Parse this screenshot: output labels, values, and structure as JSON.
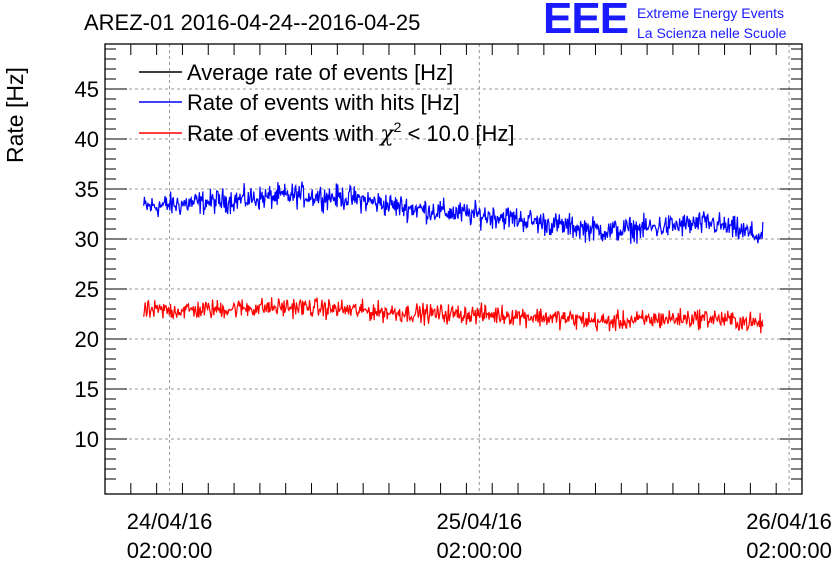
{
  "header": {
    "title": "AREZ-01 2016-04-24--2016-04-25",
    "logo_letters": "EEE",
    "logo_line1": "Extreme Energy Events",
    "logo_line2": "La Scienza nelle Scuole"
  },
  "colors": {
    "average": "#000000",
    "hits": "#0000ff",
    "chi2": "#ff0000",
    "logo": "#1a1aff",
    "grid": "#9a9a9a"
  },
  "chart_data": {
    "type": "line",
    "ylabel": "Rate [Hz]",
    "xlabel": "",
    "ylim": [
      4.5,
      49.5
    ],
    "yticks": [
      10,
      15,
      20,
      25,
      30,
      35,
      40,
      45
    ],
    "xlim": [
      "2016-04-23 21:00:00",
      "2016-04-26 03:00:00"
    ],
    "xticks": [
      {
        "date": "24/04/16",
        "time": "02:00:00",
        "value": "2016-04-24 02:00:00"
      },
      {
        "date": "25/04/16",
        "time": "02:00:00",
        "value": "2016-04-25 02:00:00"
      },
      {
        "date": "26/04/16",
        "time": "02:00:00",
        "value": "2016-04-26 02:00:00"
      }
    ],
    "grid": true,
    "legend_position": "top-left",
    "legend": {
      "average": "Average rate of events [Hz]",
      "hits": "Rate of events with hits [Hz]",
      "chi2_prefix": "Rate of events with ",
      "chi2_symbol": "χ",
      "chi2_sup": "2",
      "chi2_suffix": " < 10.0 [Hz]"
    },
    "series": [
      {
        "name": "Rate of events with hits [Hz]",
        "key": "hits",
        "noise": 1.0,
        "points": [
          {
            "x": "2016-04-24 00:00:00",
            "y": 33.2
          },
          {
            "x": "2016-04-24 04:00:00",
            "y": 33.6
          },
          {
            "x": "2016-04-24 08:00:00",
            "y": 34.0
          },
          {
            "x": "2016-04-24 12:00:00",
            "y": 34.4
          },
          {
            "x": "2016-04-24 16:00:00",
            "y": 34.1
          },
          {
            "x": "2016-04-24 20:00:00",
            "y": 33.2
          },
          {
            "x": "2016-04-25 00:00:00",
            "y": 32.6
          },
          {
            "x": "2016-04-25 04:00:00",
            "y": 32.2
          },
          {
            "x": "2016-04-25 08:00:00",
            "y": 31.4
          },
          {
            "x": "2016-04-25 12:00:00",
            "y": 30.8
          },
          {
            "x": "2016-04-25 16:00:00",
            "y": 31.2
          },
          {
            "x": "2016-04-25 20:00:00",
            "y": 31.6
          },
          {
            "x": "2016-04-25 23:58:00",
            "y": 30.2
          }
        ]
      },
      {
        "name": "Rate of events with χ2 < 10.0 [Hz]",
        "key": "chi2",
        "noise": 0.8,
        "points": [
          {
            "x": "2016-04-24 00:00:00",
            "y": 22.8
          },
          {
            "x": "2016-04-24 04:00:00",
            "y": 22.9
          },
          {
            "x": "2016-04-24 08:00:00",
            "y": 23.1
          },
          {
            "x": "2016-04-24 12:00:00",
            "y": 23.2
          },
          {
            "x": "2016-04-24 16:00:00",
            "y": 22.9
          },
          {
            "x": "2016-04-24 20:00:00",
            "y": 22.6
          },
          {
            "x": "2016-04-25 00:00:00",
            "y": 22.5
          },
          {
            "x": "2016-04-25 04:00:00",
            "y": 22.4
          },
          {
            "x": "2016-04-25 08:00:00",
            "y": 22.1
          },
          {
            "x": "2016-04-25 12:00:00",
            "y": 21.7
          },
          {
            "x": "2016-04-25 16:00:00",
            "y": 22.0
          },
          {
            "x": "2016-04-25 20:00:00",
            "y": 22.1
          },
          {
            "x": "2016-04-25 23:58:00",
            "y": 21.5
          }
        ]
      }
    ]
  }
}
